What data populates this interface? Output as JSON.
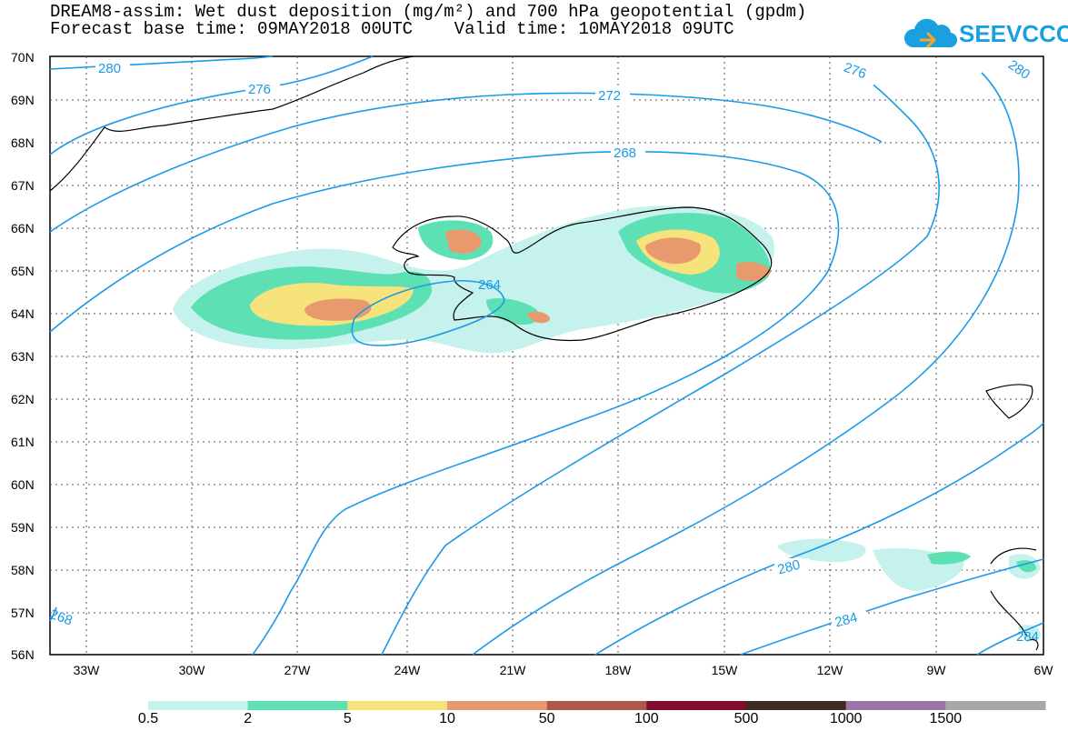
{
  "header": {
    "title_line1": "DREAM8-assim: Wet dust deposition (mg/m²) and 700 hPa geopotential (gpdm)",
    "title_line2": "Forecast base time: 09MAY2018 00UTC    Valid time: 10MAY2018 09UTC"
  },
  "logo": {
    "text": "SEEVCCC",
    "icon": "cloud-icon"
  },
  "map": {
    "latitude_labels": [
      "70N",
      "69N",
      "68N",
      "67N",
      "66N",
      "65N",
      "64N",
      "63N",
      "62N",
      "61N",
      "60N",
      "59N",
      "58N",
      "57N",
      "56N"
    ],
    "longitude_labels": [
      "33W",
      "30W",
      "27W",
      "24W",
      "21W",
      "18W",
      "15W",
      "12W",
      "9W",
      "6W"
    ],
    "contour_labels": [
      "280",
      "276",
      "272",
      "268",
      "264",
      "276",
      "280",
      "280",
      "284",
      "268",
      "284"
    ]
  },
  "legend": {
    "labels": [
      "0.5",
      "2",
      "5",
      "10",
      "50",
      "100",
      "500",
      "1000",
      "1500"
    ],
    "colors": [
      "#c5f2ec",
      "#5ee0b5",
      "#f7e37b",
      "#e89a6e",
      "#b0574b",
      "#820c2c",
      "#3c2b1e",
      "#9b78a8",
      "#a8a8a8"
    ]
  }
}
